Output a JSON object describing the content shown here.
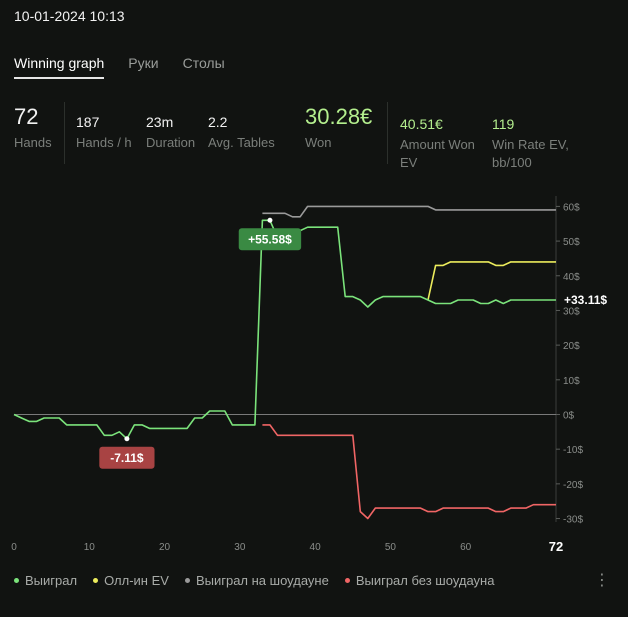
{
  "header": {
    "datetime": "10-01-2024 10:13"
  },
  "tabs": [
    {
      "label": "Winning graph",
      "active": true
    },
    {
      "label": "Руки",
      "active": false
    },
    {
      "label": "Столы",
      "active": false
    }
  ],
  "stats": {
    "hands": {
      "value": "72",
      "label": "Hands"
    },
    "hands_per_hour": {
      "value": "187",
      "label": "Hands / h"
    },
    "duration": {
      "value": "23m",
      "label": "Duration"
    },
    "avg_tables": {
      "value": "2.2",
      "label": "Avg. Tables"
    },
    "won": {
      "value": "30.28€",
      "label": "Won"
    },
    "amount_won_ev": {
      "value": "40.51€",
      "label_line1": "Amount Won",
      "label_line2": "EV"
    },
    "win_rate_ev": {
      "value": "119",
      "label_line1": "Win Rate EV,",
      "label_line2": "bb/100"
    }
  },
  "legend": {
    "won": "Выиграл",
    "allin_ev": "Олл-ин EV",
    "showdown": "Выиграл на шоудауне",
    "no_showdown": "Выиграл без шоудауна"
  },
  "menu_icon": "kebab-icon",
  "chart_data": {
    "type": "line",
    "x_ticks": [
      "0",
      "10",
      "20",
      "30",
      "40",
      "50",
      "60"
    ],
    "x_end_label": "72",
    "xlim": [
      0,
      72
    ],
    "y_ticks": [
      "60$",
      "50$",
      "40$",
      "30$",
      "20$",
      "10$",
      "0$",
      "-10$",
      "-20$",
      "-30$"
    ],
    "y_tick_values": [
      60,
      50,
      40,
      30,
      20,
      10,
      0,
      -10,
      -20,
      -30
    ],
    "ylim": [
      -31,
      63
    ],
    "grid": false,
    "legend_position": "bottom-left",
    "colors": {
      "won": "#7be37b",
      "allin_ev": "#ecec5c",
      "showdown": "#9a9a9a",
      "no_showdown": "#f06565",
      "zero_line": "#7a7a7a"
    },
    "series": [
      {
        "key": "won",
        "name": "Выиграл",
        "x": [
          0,
          1,
          2,
          3,
          4,
          5,
          6,
          7,
          8,
          9,
          10,
          11,
          12,
          13,
          14,
          15,
          16,
          17,
          18,
          19,
          20,
          21,
          22,
          23,
          24,
          25,
          26,
          27,
          28,
          29,
          30,
          31,
          32,
          33,
          34,
          35,
          36,
          37,
          38,
          39,
          40,
          41,
          42,
          43,
          44,
          45,
          46,
          47,
          48,
          49,
          50,
          51,
          52,
          53,
          54,
          55,
          56,
          57,
          58,
          59,
          60,
          61,
          62,
          63,
          64,
          65,
          66,
          67,
          68,
          69,
          70,
          71,
          72
        ],
        "y": [
          0,
          -1,
          -2,
          -2,
          -1,
          -1,
          -1,
          -3,
          -3,
          -3,
          -3,
          -3,
          -6,
          -6,
          -5,
          -7,
          -3,
          -3,
          -4,
          -4,
          -4,
          -4,
          -4,
          -4,
          -1,
          -1,
          1,
          1,
          1,
          -3,
          -3,
          -3,
          -3,
          56,
          56,
          51,
          51,
          51,
          53,
          54,
          54,
          54,
          54,
          54,
          34,
          34,
          33,
          31,
          33,
          34,
          34,
          34,
          34,
          34,
          34,
          33,
          32,
          32,
          32,
          33,
          33,
          33,
          32,
          32,
          33,
          32,
          33,
          33,
          33,
          33,
          33,
          33,
          33
        ]
      },
      {
        "key": "allin_ev",
        "name": "Олл-ин EV",
        "x": [
          55,
          56,
          57,
          58,
          59,
          60,
          61,
          62,
          63,
          64,
          65,
          66,
          67,
          68,
          69,
          70,
          71,
          72
        ],
        "y": [
          33,
          43,
          43,
          44,
          44,
          44,
          44,
          44,
          44,
          43,
          43,
          44,
          44,
          44,
          44,
          44,
          44,
          44
        ]
      },
      {
        "key": "showdown",
        "name": "Выиграл на шоудауне",
        "x": [
          33,
          36,
          37,
          38,
          39,
          40,
          41,
          42,
          43,
          44,
          45,
          46,
          47,
          48,
          49,
          50,
          51,
          52,
          53,
          54,
          55,
          56,
          57,
          58,
          59,
          60,
          61,
          62,
          63,
          64,
          65,
          66,
          67,
          68,
          69,
          70,
          71,
          72
        ],
        "y": [
          58,
          58,
          57,
          57,
          60,
          60,
          60,
          60,
          60,
          60,
          60,
          60,
          60,
          60,
          60,
          60,
          60,
          60,
          60,
          60,
          60,
          59,
          59,
          59,
          59,
          59,
          59,
          59,
          59,
          59,
          59,
          59,
          59,
          59,
          59,
          59,
          59,
          59
        ]
      },
      {
        "key": "no_showdown",
        "name": "Выиграл без шоудауна",
        "x": [
          33,
          34,
          35,
          36,
          37,
          38,
          39,
          40,
          41,
          42,
          43,
          44,
          45,
          46,
          47,
          48,
          49,
          50,
          51,
          52,
          53,
          54,
          55,
          56,
          57,
          58,
          59,
          60,
          61,
          62,
          63,
          64,
          65,
          66,
          67,
          68,
          69,
          70,
          71,
          72
        ],
        "y": [
          -3,
          -3,
          -6,
          -6,
          -6,
          -6,
          -6,
          -6,
          -6,
          -6,
          -6,
          -6,
          -6,
          -28,
          -30,
          -27,
          -27,
          -27,
          -27,
          -27,
          -27,
          -27,
          -28,
          -28,
          -27,
          -27,
          -27,
          -27,
          -27,
          -27,
          -27,
          -28,
          -28,
          -27,
          -27,
          -27,
          -26,
          -26,
          -26,
          -26
        ]
      }
    ],
    "annotations": [
      {
        "label": "+55.58$",
        "x": 34,
        "y": 56,
        "color": "#3a8a43",
        "placement": "below"
      },
      {
        "label": "-7.11$",
        "x": 15,
        "y": -7,
        "color": "#a84343",
        "placement": "below"
      }
    ],
    "end_label": {
      "text": "+33.11$",
      "y": 33
    }
  }
}
